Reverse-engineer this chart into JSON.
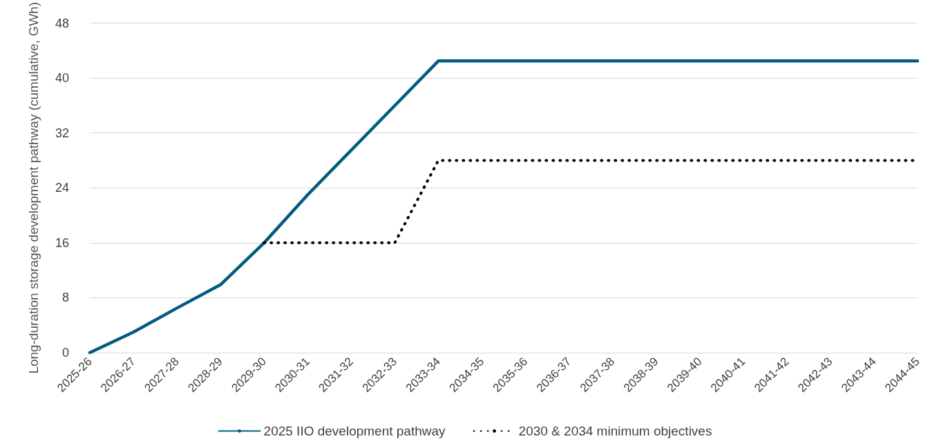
{
  "chart_data": {
    "type": "line",
    "ylabel": "Long-duration storage development pathway (cumulative, GWh)",
    "categories": [
      "2025-26",
      "2026-27",
      "2027-28",
      "2028-29",
      "2029-30",
      "2030-31",
      "2031-32",
      "2032-33",
      "2033-34",
      "2034-35",
      "2035-36",
      "2036-37",
      "2037-38",
      "2038-39",
      "2039-40",
      "2040-41",
      "2041-42",
      "2042-43",
      "2043-44",
      "2044-45"
    ],
    "series": [
      {
        "name": "2025 IIO development pathway",
        "color": "#045a83",
        "line_style": "solid",
        "values": [
          0,
          3,
          6.5,
          9.9,
          16,
          23,
          29.5,
          36,
          42.5,
          42.5,
          42.5,
          42.5,
          42.5,
          42.5,
          42.5,
          42.5,
          42.5,
          42.5,
          42.5,
          42.5
        ]
      },
      {
        "name": "2030 & 2034 minimum objectives",
        "color": "#000000",
        "line_style": "dotted",
        "values": [
          null,
          null,
          null,
          null,
          16,
          16,
          16,
          16,
          28,
          28,
          28,
          28,
          28,
          28,
          28,
          28,
          28,
          28,
          28,
          28
        ]
      }
    ],
    "ylim": [
      0,
      48
    ],
    "yticks": [
      0,
      8,
      16,
      24,
      32,
      40,
      48
    ],
    "grid": "y",
    "legend": "bottom",
    "marker": "none"
  }
}
